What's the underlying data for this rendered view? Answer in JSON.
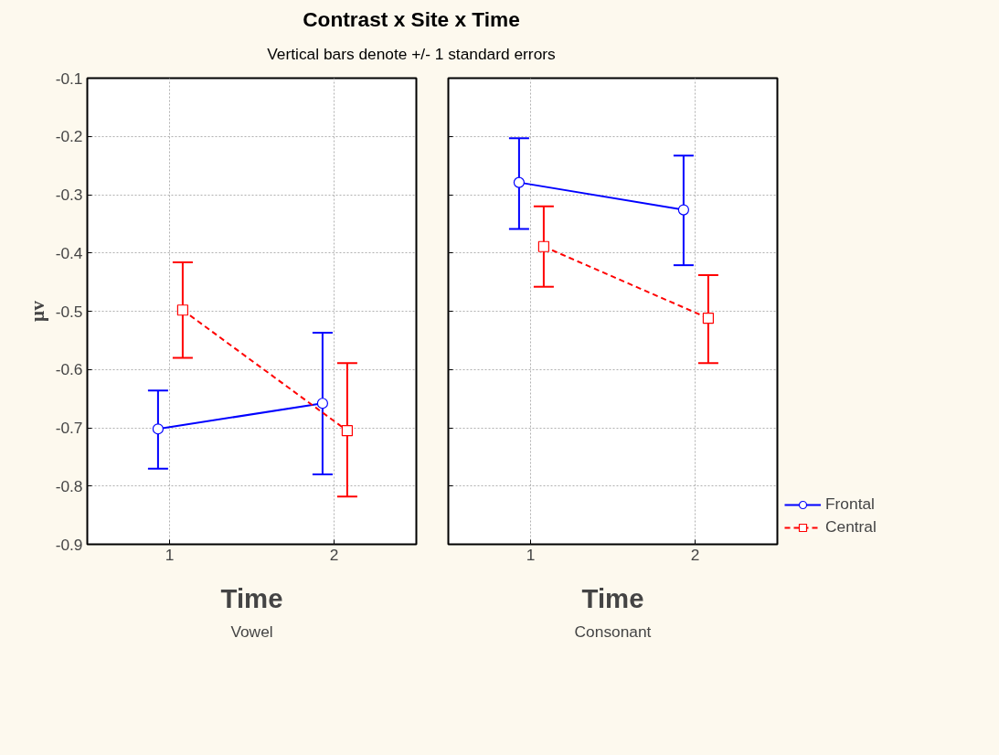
{
  "chart_data": [
    {
      "type": "line",
      "title": "Contrast x Site x Time",
      "subtitle": "Vertical bars denote +/- 1 standard errors",
      "xlabel": "Time",
      "ylabel": "μv",
      "annotations": [
        "Vowel"
      ],
      "legend": "bottom right",
      "xlim": [
        0.5,
        2.5
      ],
      "xticks": [
        1,
        2
      ],
      "ylim": [
        -0.9,
        -0.1
      ],
      "yticks": [
        -0.1,
        -0.2,
        -0.3,
        -0.4,
        -0.5,
        -0.6,
        -0.7,
        -0.8,
        -0.9
      ],
      "grid": true,
      "series": [
        {
          "name": "Frontal",
          "color": "#0000ff",
          "marker": "circle",
          "line_style": "solid",
          "x": [
            0.93,
            1.93
          ],
          "values": [
            -0.702,
            -0.658
          ],
          "errors": [
            [
              -0.77,
              -0.636
            ],
            [
              -0.78,
              -0.537
            ]
          ]
        },
        {
          "name": "Central",
          "color": "#ff0000",
          "marker": "square",
          "line_style": "dashed",
          "x": [
            1.08,
            2.08
          ],
          "values": [
            -0.498,
            -0.705
          ],
          "errors": [
            [
              -0.58,
              -0.416
            ],
            [
              -0.818,
              -0.589
            ]
          ]
        }
      ]
    },
    {
      "type": "line",
      "xlabel": "Time",
      "annotations": [
        "Consonant"
      ],
      "xlim": [
        0.5,
        2.5
      ],
      "xticks": [
        1,
        2
      ],
      "ylim": [
        -0.9,
        -0.1
      ],
      "yticks": [
        -0.1,
        -0.2,
        -0.3,
        -0.4,
        -0.5,
        -0.6,
        -0.7,
        -0.8,
        -0.9
      ],
      "grid": true,
      "tick_labels": "x",
      "series": [
        {
          "color": "#0000ff",
          "marker": "circle",
          "line_style": "solid",
          "x": [
            0.93,
            1.93
          ],
          "values": [
            -0.279,
            -0.326
          ],
          "errors": [
            [
              -0.359,
              -0.203
            ],
            [
              -0.421,
              -0.233
            ]
          ]
        },
        {
          "color": "#ff0000",
          "marker": "square",
          "line_style": "dashed",
          "x": [
            1.08,
            2.08
          ],
          "values": [
            -0.389,
            -0.512
          ],
          "errors": [
            [
              -0.458,
              -0.32
            ],
            [
              -0.589,
              -0.438
            ]
          ]
        }
      ]
    }
  ]
}
